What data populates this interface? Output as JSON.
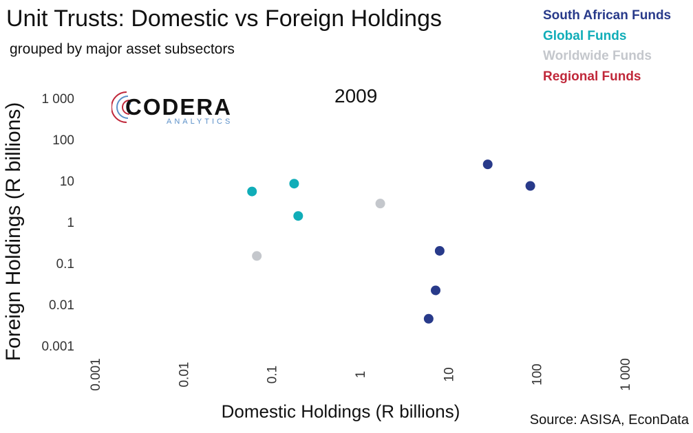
{
  "chart_data": {
    "type": "scatter",
    "title": "Unit Trusts: Domestic vs Foreign Holdings",
    "subtitle": "grouped by major asset subsectors",
    "annotation": "2009",
    "xlabel": "Domestic Holdings (R billions)",
    "ylabel": "Foreign Holdings (R billions)",
    "x_scale": "log",
    "y_scale": "log",
    "xlim": [
      0.001,
      1000
    ],
    "ylim": [
      0.001,
      1000
    ],
    "x_ticks": [
      0.001,
      0.01,
      0.1,
      1,
      10,
      100,
      1000
    ],
    "x_tick_labels": [
      "0.001",
      "0.01",
      "0.1",
      "1",
      "10",
      "100",
      "1 000"
    ],
    "y_ticks": [
      0.001,
      0.01,
      0.1,
      1,
      10,
      100,
      1000
    ],
    "y_tick_labels": [
      "0.001",
      "0.01",
      "0.1",
      "1",
      "10",
      "100",
      "1 000"
    ],
    "grid": false,
    "legend_position": "top-right",
    "series": [
      {
        "name": "South African Funds",
        "color": "#283a8a",
        "points": [
          [
            28,
            25
          ],
          [
            85,
            7.5
          ],
          [
            8,
            0.2
          ],
          [
            7.2,
            0.022
          ],
          [
            6,
            0.0045
          ]
        ]
      },
      {
        "name": "Global Funds",
        "color": "#10adb8",
        "points": [
          [
            0.06,
            5.5
          ],
          [
            0.18,
            8.5
          ],
          [
            0.2,
            1.4
          ]
        ]
      },
      {
        "name": "Worldwide Funds",
        "color": "#c4c7cc",
        "points": [
          [
            1.7,
            2.8
          ],
          [
            0.068,
            0.15
          ]
        ]
      },
      {
        "name": "Regional Funds",
        "color": "#c0283a",
        "points": []
      }
    ]
  },
  "source": "Source: ASISA, EconData",
  "logo": {
    "name": "CODERA",
    "sub": "ANALYTICS"
  }
}
